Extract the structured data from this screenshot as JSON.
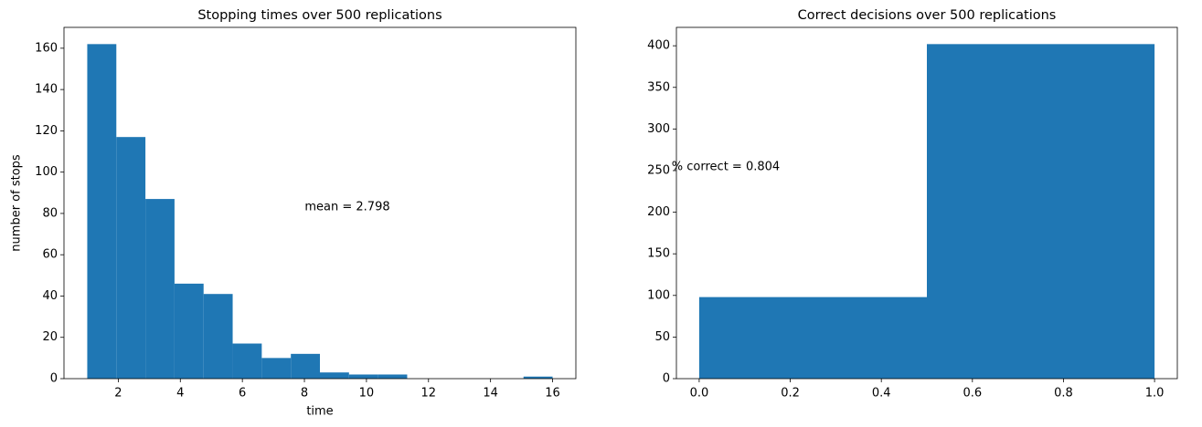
{
  "chart_data": [
    {
      "type": "histogram",
      "title": "Stopping times over 500 replications",
      "xlabel": "time",
      "ylabel": "number of stops",
      "bins": [
        1,
        1.9375,
        2.875,
        3.8125,
        4.75,
        5.6875,
        6.625,
        7.5625,
        8.5,
        9.4375,
        10.375,
        11.3125,
        12.25,
        13.1875,
        14.125,
        15.0625,
        16
      ],
      "values": [
        162,
        117,
        87,
        46,
        41,
        17,
        10,
        12,
        3,
        2,
        2,
        0,
        0,
        0,
        0,
        1
      ],
      "color": "#1f77b4",
      "xlim": [
        0.25,
        16.75
      ],
      "ylim": [
        0,
        170.1
      ],
      "xticks": [
        2,
        4,
        6,
        8,
        10,
        12,
        14,
        16
      ],
      "yticks": [
        0,
        20,
        40,
        60,
        80,
        100,
        120,
        140,
        160
      ],
      "annotation": "mean = 2.798"
    },
    {
      "type": "histogram",
      "title": "Correct decisions over 500 replications",
      "bins": [
        0,
        0.5,
        1
      ],
      "values": [
        98,
        402
      ],
      "color": "#1f77b4",
      "xlim": [
        -0.05,
        1.05
      ],
      "ylim": [
        0,
        422.1
      ],
      "xticks": [
        {
          "value": 0,
          "label": "0.0"
        },
        {
          "value": 0.2,
          "label": "0.2"
        },
        {
          "value": 0.4,
          "label": "0.4"
        },
        {
          "value": 0.6,
          "label": "0.6"
        },
        {
          "value": 0.8,
          "label": "0.8"
        },
        {
          "value": 1,
          "label": "1.0"
        }
      ],
      "yticks": [
        0,
        50,
        100,
        150,
        200,
        250,
        300,
        350,
        400
      ],
      "annotation": "% correct = 0.804"
    }
  ]
}
